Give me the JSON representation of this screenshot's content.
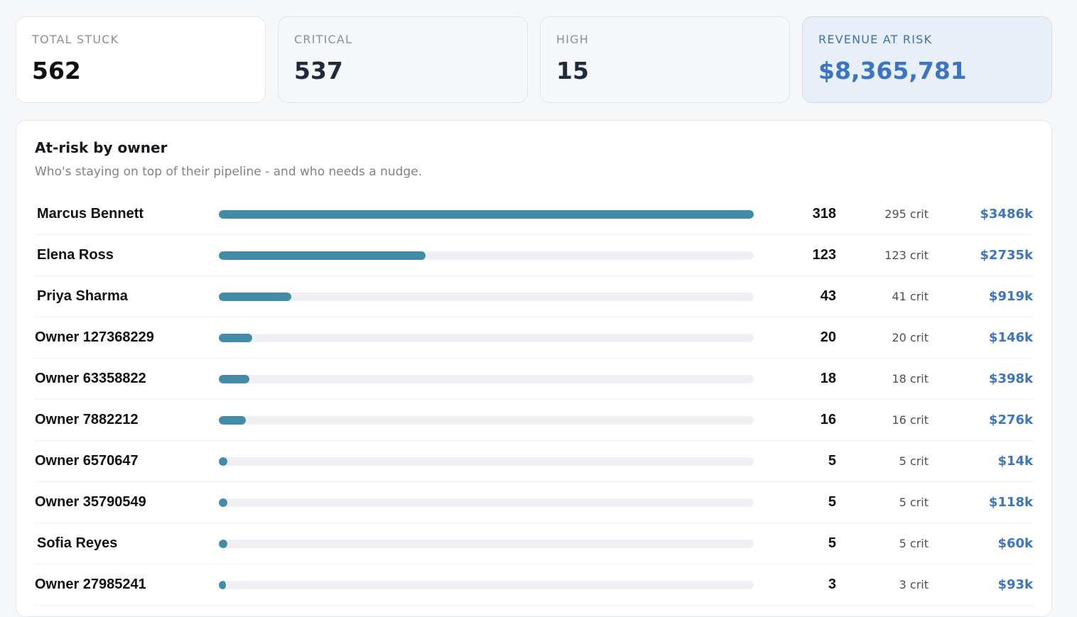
{
  "kpis": {
    "total_stuck": {
      "label": "TOTAL STUCK",
      "value": "562"
    },
    "critical": {
      "label": "CRITICAL",
      "value": "537"
    },
    "high": {
      "label": "HIGH",
      "value": "15"
    },
    "revenue_at_risk": {
      "label": "REVENUE AT RISK",
      "value": "$8,365,781"
    }
  },
  "panel": {
    "title": "At-risk by owner",
    "subtitle": "Who's staying on top of their pipeline - and who needs a nudge."
  },
  "owners": [
    {
      "name": "Marcus Bennett",
      "count": "318",
      "crit": "295 crit",
      "revenue": "$3486k",
      "fill_fraction": 1.0
    },
    {
      "name": "Elena Ross",
      "count": "123",
      "crit": "123 crit",
      "revenue": "$2735k",
      "fill_fraction": 0.387
    },
    {
      "name": "Priya Sharma",
      "count": "43",
      "crit": "41 crit",
      "revenue": "$919k",
      "fill_fraction": 0.135
    },
    {
      "name": "Owner 127368229",
      "count": "20",
      "crit": "20 crit",
      "revenue": "$146k",
      "fill_fraction": 0.063
    },
    {
      "name": "Owner 63358822",
      "count": "18",
      "crit": "18 crit",
      "revenue": "$398k",
      "fill_fraction": 0.057
    },
    {
      "name": "Owner 7882212",
      "count": "16",
      "crit": "16 crit",
      "revenue": "$276k",
      "fill_fraction": 0.05
    },
    {
      "name": "Owner 6570647",
      "count": "5",
      "crit": "5 crit",
      "revenue": "$14k",
      "fill_fraction": 0.016
    },
    {
      "name": "Owner 35790549",
      "count": "5",
      "crit": "5 crit",
      "revenue": "$118k",
      "fill_fraction": 0.016
    },
    {
      "name": "Sofia Reyes",
      "count": "5",
      "crit": "5 crit",
      "revenue": "$60k",
      "fill_fraction": 0.016
    },
    {
      "name": "Owner 27985241",
      "count": "3",
      "crit": "3 crit",
      "revenue": "$93k",
      "fill_fraction": 0.009
    }
  ],
  "colors": {
    "bar_fill": "#428ca7",
    "bar_track": "#eef0f3",
    "revenue_accent": "#3b74c2"
  }
}
